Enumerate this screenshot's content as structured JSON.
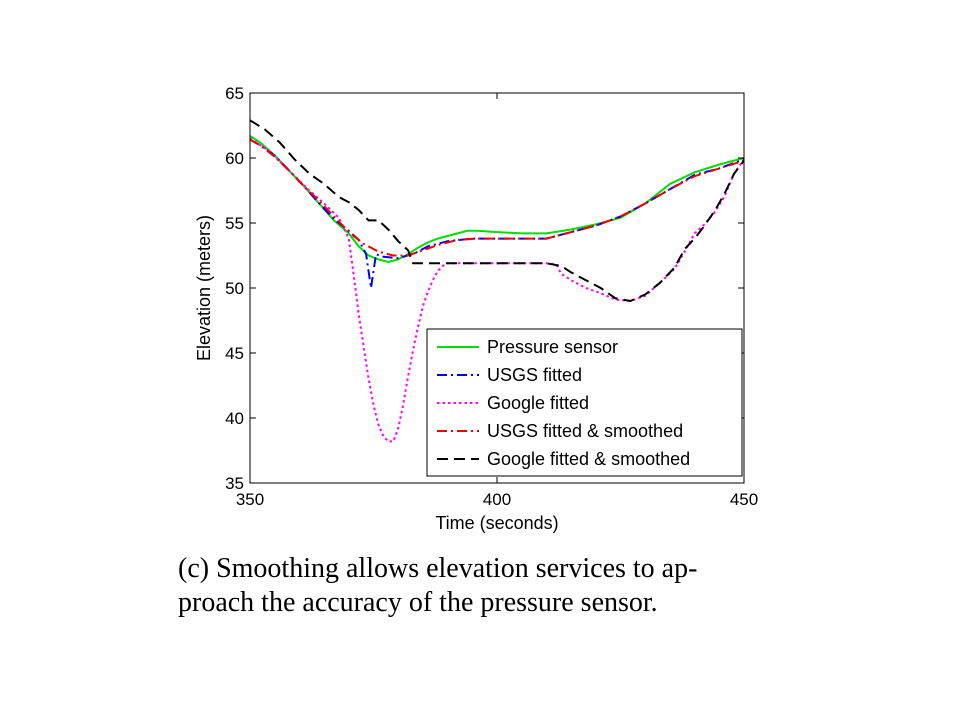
{
  "chart_data": {
    "type": "line",
    "xlabel": "Time (seconds)",
    "ylabel": "Elevation (meters)",
    "xlim": [
      350,
      450
    ],
    "ylim": [
      35,
      65
    ],
    "xticks": [
      350,
      400,
      450
    ],
    "yticks": [
      35,
      40,
      45,
      50,
      55,
      60,
      65
    ],
    "grid": false,
    "legend_position": "bottom-right",
    "series": [
      {
        "name": "Pressure sensor",
        "color": "#00dd00",
        "style": "solid",
        "x": [
          350,
          352,
          355,
          358,
          361,
          364,
          367,
          370,
          372,
          374,
          376,
          378,
          380,
          382,
          384,
          386,
          388,
          390,
          392,
          394,
          396,
          400,
          405,
          410,
          415,
          420,
          425,
          430,
          435,
          440,
          445,
          450
        ],
        "y": [
          61.7,
          61.2,
          60.2,
          59.0,
          57.8,
          56.5,
          55.2,
          54.2,
          53.2,
          52.5,
          52.2,
          52.0,
          52.2,
          52.6,
          53.1,
          53.5,
          53.8,
          54.0,
          54.2,
          54.4,
          54.4,
          54.3,
          54.2,
          54.2,
          54.5,
          54.9,
          55.4,
          56.5,
          58.0,
          58.9,
          59.5,
          60.0
        ]
      },
      {
        "name": "USGS fitted",
        "color": "#0000ee",
        "style": "dashdot",
        "x": [
          350,
          352,
          355,
          358,
          361,
          364,
          367,
          370,
          372,
          373.5,
          374.5,
          375.5,
          377,
          380,
          383,
          386,
          390,
          395,
          400,
          405,
          410,
          415,
          420,
          425,
          430,
          435,
          440,
          445,
          450
        ],
        "y": [
          61.4,
          61.0,
          60.2,
          59.0,
          57.8,
          56.5,
          55.3,
          54.4,
          53.7,
          52.6,
          50.0,
          52.6,
          52.4,
          52.3,
          52.6,
          53.2,
          53.6,
          53.8,
          53.8,
          53.8,
          53.8,
          54.3,
          54.8,
          55.5,
          56.5,
          57.6,
          58.7,
          59.2,
          59.9
        ]
      },
      {
        "name": "Google fitted",
        "color": "#ff00ff",
        "style": "dotted",
        "x": [
          350,
          354,
          358,
          362,
          365,
          368,
          370,
          371,
          372,
          373,
          374,
          375,
          376,
          377,
          378,
          379,
          380,
          381,
          382,
          383,
          384,
          385,
          386,
          387,
          388,
          389,
          390,
          392,
          395,
          400,
          405,
          410,
          412,
          413,
          415,
          418,
          421,
          424,
          427,
          430,
          433,
          436,
          438,
          440,
          442,
          444,
          446,
          448,
          450
        ],
        "y": [
          61.5,
          60.5,
          59.0,
          57.5,
          56.5,
          55.4,
          53.8,
          51.0,
          48.0,
          45.5,
          43.0,
          41.0,
          39.5,
          38.6,
          38.2,
          38.2,
          39.2,
          41.0,
          43.2,
          45.2,
          47.0,
          48.6,
          49.7,
          50.6,
          51.3,
          51.7,
          51.9,
          51.9,
          51.9,
          51.9,
          51.9,
          51.9,
          51.8,
          51.1,
          50.6,
          50.0,
          49.6,
          49.1,
          49.0,
          49.4,
          50.4,
          51.5,
          52.8,
          54.2,
          54.9,
          55.8,
          57.0,
          58.8,
          59.9
        ]
      },
      {
        "name": "USGS fitted & smoothed",
        "color": "#ee0000",
        "style": "dashdot",
        "x": [
          350,
          352,
          355,
          358,
          361,
          364,
          367,
          370,
          373,
          376,
          379,
          382,
          385,
          388,
          392,
          396,
          400,
          405,
          410,
          415,
          420,
          425,
          430,
          435,
          440,
          445,
          450
        ],
        "y": [
          61.4,
          61.0,
          60.1,
          59.0,
          57.8,
          56.7,
          55.5,
          54.3,
          53.4,
          52.8,
          52.5,
          52.5,
          52.9,
          53.3,
          53.7,
          53.8,
          53.8,
          53.8,
          53.8,
          54.3,
          54.8,
          55.5,
          56.5,
          57.6,
          58.6,
          59.2,
          59.8
        ]
      },
      {
        "name": "Google fitted & smoothed",
        "color": "#000000",
        "style": "dashed",
        "x": [
          350,
          353,
          356,
          359,
          362,
          365,
          368,
          370,
          372,
          374,
          376,
          378,
          380,
          382,
          383,
          385,
          390,
          395,
          400,
          405,
          410,
          413,
          415,
          418,
          421,
          424,
          427,
          430,
          433,
          436,
          438,
          440,
          442,
          444,
          446,
          448,
          450
        ],
        "y": [
          62.9,
          62.2,
          61.2,
          59.9,
          58.8,
          58.0,
          57.0,
          56.6,
          56.0,
          55.2,
          55.2,
          54.5,
          53.6,
          52.9,
          51.9,
          51.9,
          51.9,
          51.9,
          51.9,
          51.9,
          51.9,
          51.7,
          51.2,
          50.6,
          50.0,
          49.2,
          49.0,
          49.5,
          50.4,
          51.6,
          53.0,
          53.8,
          54.8,
          55.9,
          57.2,
          58.8,
          59.8
        ]
      }
    ]
  },
  "caption": {
    "line1": "(c) Smoothing allows elevation services to ap-",
    "line2": "proach the accuracy of the pressure sensor."
  }
}
